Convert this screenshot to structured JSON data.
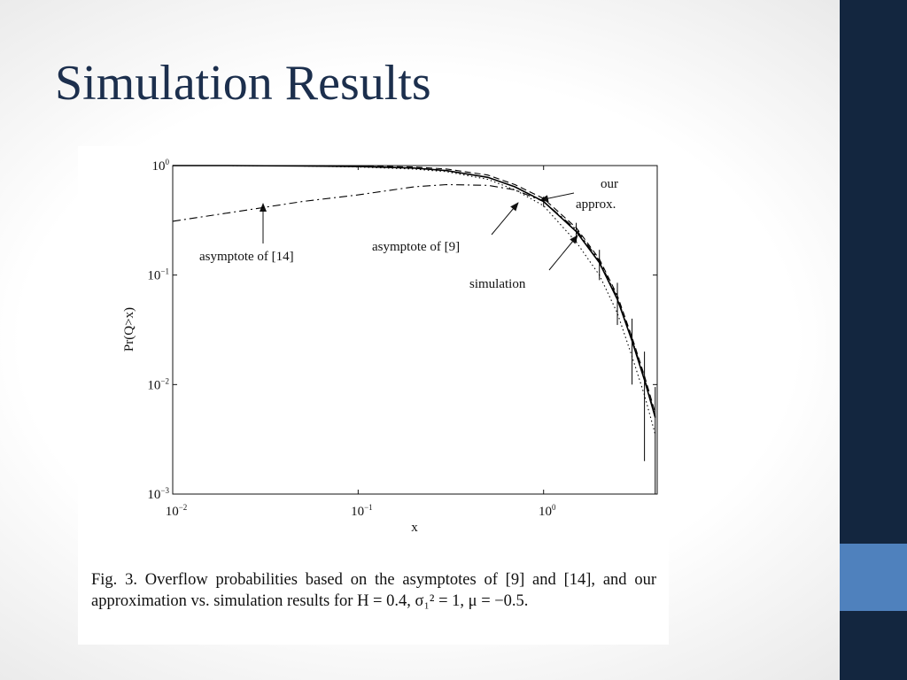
{
  "title": "Simulation Results",
  "caption": "Fig. 3.    Overflow probabilities based on the asymptotes of [9] and [14], and our approximation vs. simulation results for H = 0.4, σ₁² = 1, μ = −0.5.",
  "chart_data": {
    "type": "line",
    "xlabel": "x",
    "ylabel": "Pr(Q>x)",
    "xscale": "log",
    "yscale": "log",
    "xlim": [
      0.01,
      4.1
    ],
    "ylim": [
      0.001,
      1
    ],
    "xticks": [
      {
        "value": 0.01,
        "label": "10",
        "exponent": "−2"
      },
      {
        "value": 0.1,
        "label": "10",
        "exponent": "−1"
      },
      {
        "value": 1,
        "label": "10",
        "exponent": "0"
      }
    ],
    "yticks": [
      {
        "value": 0.001,
        "label": "10",
        "exponent": "−3"
      },
      {
        "value": 0.01,
        "label": "10",
        "exponent": "−2"
      },
      {
        "value": 0.1,
        "label": "10",
        "exponent": "−1"
      },
      {
        "value": 1,
        "label": "10",
        "exponent": "0"
      }
    ],
    "x": [
      0.01,
      0.02,
      0.05,
      0.1,
      0.2,
      0.3,
      0.5,
      0.7,
      1,
      1.5,
      2,
      2.5,
      3,
      3.5,
      4
    ],
    "series": [
      {
        "name": "simulation",
        "color": "#000000",
        "dash": "solid",
        "values": [
          1,
          1,
          0.99,
          0.98,
          0.95,
          0.9,
          0.78,
          0.64,
          0.47,
          0.25,
          0.13,
          0.06,
          0.025,
          0.011,
          0.005
        ],
        "errors": [
          null,
          null,
          null,
          null,
          null,
          null,
          null,
          null,
          0.05,
          0.05,
          0.04,
          0.025,
          0.015,
          0.009,
          0.0045
        ]
      },
      {
        "name": "our approx.",
        "color": "#000000",
        "dash": "dashed",
        "values": [
          1,
          1,
          1,
          0.99,
          0.97,
          0.93,
          0.82,
          0.67,
          0.5,
          0.27,
          0.14,
          0.065,
          0.027,
          0.012,
          0.0055
        ]
      },
      {
        "name": "asymptote of [9]",
        "color": "#000000",
        "dash": "dotted",
        "values": [
          1,
          1,
          0.99,
          0.97,
          0.93,
          0.88,
          0.75,
          0.6,
          0.43,
          0.2,
          0.1,
          0.045,
          0.018,
          0.008,
          0.0035
        ]
      },
      {
        "name": "asymptote of [14]",
        "color": "#000000",
        "dash": "dashdot",
        "values": [
          0.31,
          0.37,
          0.47,
          0.54,
          0.64,
          0.67,
          0.66,
          0.6,
          0.47,
          0.26,
          0.135,
          0.062,
          0.026,
          0.0115,
          0.0052
        ]
      }
    ]
  }
}
